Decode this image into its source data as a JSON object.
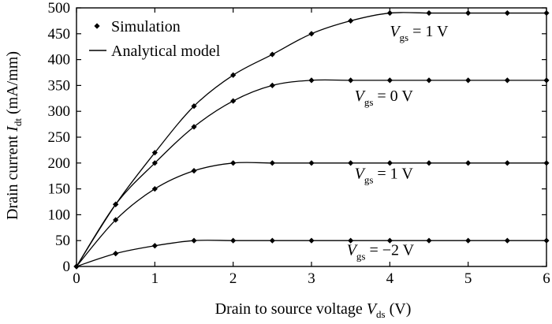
{
  "chart_data": {
    "type": "line",
    "xlabel": "Drain to source voltage",
    "xlabel_symbol": "V",
    "xlabel_sub": "ds",
    "xlabel_unit": " (V)",
    "ylabel": "Drain current ",
    "ylabel_symbol": "I",
    "ylabel_sub": "dt",
    "ylabel_unit": " (mA/mm)",
    "xlim": [
      0,
      6
    ],
    "ylim": [
      0,
      500
    ],
    "xticks": [
      "0",
      "1",
      "2",
      "3",
      "4",
      "5",
      "6"
    ],
    "yticks": [
      "0",
      "50",
      "100",
      "150",
      "200",
      "250",
      "300",
      "350",
      "400",
      "450",
      "500"
    ],
    "legend": {
      "position": "top-left",
      "entries": [
        {
          "marker": "diamond",
          "label": "Simulation"
        },
        {
          "marker": "line",
          "label": "Analytical model"
        }
      ]
    },
    "annotations": [
      {
        "symbol": "V",
        "sub": "gs",
        "text": " = 1 V",
        "x": 4.0,
        "y": 445
      },
      {
        "symbol": "V",
        "sub": "gs",
        "text": " = 0 V",
        "x": 3.55,
        "y": 320
      },
      {
        "symbol": "V",
        "sub": "gs",
        "text": " = 1 V",
        "x": 3.55,
        "y": 170
      },
      {
        "symbol": "V",
        "sub": "gs",
        "text": " = −2 V",
        "x": 3.45,
        "y": 22
      }
    ],
    "series": [
      {
        "x": [
          0,
          0.5,
          1,
          1.5,
          2,
          2.5,
          3,
          3.5,
          4,
          4.5,
          5,
          5.5,
          6
        ],
        "y": [
          0,
          120,
          220,
          310,
          370,
          410,
          450,
          475,
          490,
          490,
          490,
          490,
          490
        ]
      },
      {
        "x": [
          0,
          0.5,
          1,
          1.5,
          2,
          2.5,
          3,
          3.5,
          4,
          4.5,
          5,
          5.5,
          6
        ],
        "y": [
          0,
          120,
          200,
          270,
          320,
          350,
          360,
          360,
          360,
          360,
          360,
          360,
          360
        ]
      },
      {
        "x": [
          0,
          0.5,
          1,
          1.5,
          2,
          2.5,
          3,
          3.5,
          4,
          4.5,
          5,
          5.5,
          6
        ],
        "y": [
          0,
          90,
          150,
          185,
          200,
          200,
          200,
          200,
          200,
          200,
          200,
          200,
          200
        ]
      },
      {
        "x": [
          0,
          0.5,
          1,
          1.5,
          2,
          2.5,
          3,
          3.5,
          4,
          4.5,
          5,
          5.5,
          6
        ],
        "y": [
          0,
          25,
          40,
          50,
          50,
          50,
          50,
          50,
          50,
          50,
          50,
          50,
          50
        ]
      }
    ],
    "colors": {
      "line": "#000000",
      "marker": "#000000",
      "background": "#ffffff"
    }
  }
}
